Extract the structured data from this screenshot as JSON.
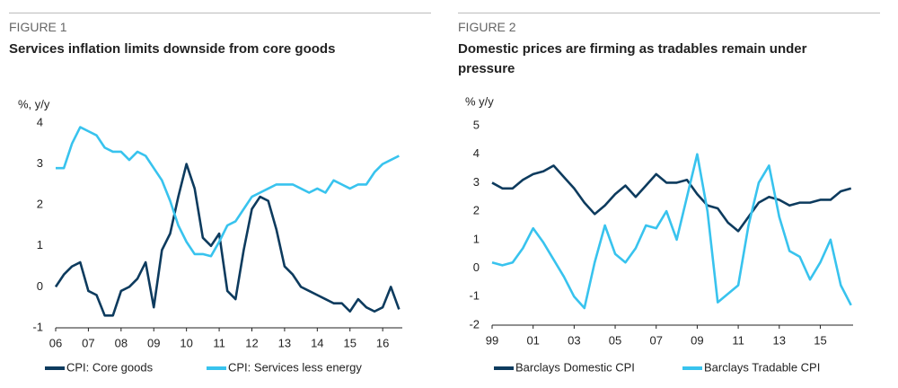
{
  "chart_data": [
    {
      "type": "line",
      "figure_label": "FIGURE 1",
      "title": "Services inflation limits downside from core goods",
      "y_label": "%, y/y",
      "x": [
        2006,
        2006.25,
        2006.5,
        2006.75,
        2007,
        2007.25,
        2007.5,
        2007.75,
        2008,
        2008.25,
        2008.5,
        2008.75,
        2009,
        2009.25,
        2009.5,
        2009.75,
        2010,
        2010.25,
        2010.5,
        2010.75,
        2011,
        2011.25,
        2011.5,
        2011.75,
        2012,
        2012.25,
        2012.5,
        2012.75,
        2013,
        2013.25,
        2013.5,
        2013.75,
        2014,
        2014.25,
        2014.5,
        2014.75,
        2015,
        2015.25,
        2015.5,
        2015.75,
        2016,
        2016.25,
        2016.5
      ],
      "series": [
        {
          "name": "CPI: Core goods",
          "color": "#0d3b5e",
          "values": [
            0,
            0.3,
            0.5,
            0.6,
            -0.1,
            -0.2,
            -0.7,
            -0.7,
            -0.1,
            0,
            0.2,
            0.6,
            -0.5,
            0.9,
            1.3,
            2.2,
            3.0,
            2.4,
            1.2,
            1.0,
            1.3,
            -0.1,
            -0.3,
            0.9,
            1.9,
            2.2,
            2.1,
            1.4,
            0.5,
            0.3,
            0,
            -0.1,
            -0.2,
            -0.3,
            -0.4,
            -0.4,
            -0.6,
            -0.3,
            -0.5,
            -0.6,
            -0.5,
            0,
            -0.55
          ]
        },
        {
          "name": "CPI: Services less energy",
          "color": "#38c3ee",
          "values": [
            2.9,
            2.9,
            3.5,
            3.9,
            3.8,
            3.7,
            3.4,
            3.3,
            3.3,
            3.1,
            3.3,
            3.2,
            2.9,
            2.6,
            2.1,
            1.5,
            1.1,
            0.8,
            0.8,
            0.75,
            1.1,
            1.5,
            1.6,
            1.9,
            2.2,
            2.3,
            2.4,
            2.5,
            2.5,
            2.5,
            2.4,
            2.3,
            2.4,
            2.3,
            2.6,
            2.5,
            2.4,
            2.5,
            2.5,
            2.8,
            3.0,
            3.1,
            3.2
          ]
        }
      ],
      "xlim": [
        2006,
        2016.6
      ],
      "xticks": [
        {
          "value": 2006,
          "label": "06"
        },
        {
          "value": 2007,
          "label": "07"
        },
        {
          "value": 2008,
          "label": "08"
        },
        {
          "value": 2009,
          "label": "09"
        },
        {
          "value": 2010,
          "label": "10"
        },
        {
          "value": 2011,
          "label": "11"
        },
        {
          "value": 2012,
          "label": "12"
        },
        {
          "value": 2013,
          "label": "13"
        },
        {
          "value": 2014,
          "label": "14"
        },
        {
          "value": 2015,
          "label": "15"
        },
        {
          "value": 2016,
          "label": "16"
        }
      ],
      "ylim": [
        -1,
        4
      ],
      "yticks": [
        -1,
        0,
        1,
        2,
        3,
        4
      ]
    },
    {
      "type": "line",
      "figure_label": "FIGURE 2",
      "title": "Domestic prices are firming as tradables remain under pressure",
      "y_label": "% y/y",
      "x": [
        1999,
        1999.5,
        2000,
        2000.5,
        2001,
        2001.5,
        2002,
        2002.5,
        2003,
        2003.5,
        2004,
        2004.5,
        2005,
        2005.5,
        2006,
        2006.5,
        2007,
        2007.5,
        2008,
        2008.5,
        2009,
        2009.5,
        2010,
        2010.5,
        2011,
        2011.5,
        2012,
        2012.5,
        2013,
        2013.5,
        2014,
        2014.5,
        2015,
        2015.5,
        2016,
        2016.5
      ],
      "series": [
        {
          "name": "Barclays Domestic CPI",
          "color": "#0d3b5e",
          "values": [
            3.0,
            2.8,
            2.8,
            3.1,
            3.3,
            3.4,
            3.6,
            3.2,
            2.8,
            2.3,
            1.9,
            2.2,
            2.6,
            2.9,
            2.5,
            2.9,
            3.3,
            3.0,
            3.0,
            3.1,
            2.6,
            2.2,
            2.1,
            1.6,
            1.3,
            1.8,
            2.3,
            2.5,
            2.4,
            2.2,
            2.3,
            2.3,
            2.4,
            2.4,
            2.7,
            2.8
          ]
        },
        {
          "name": "Barclays Tradable CPI",
          "color": "#38c3ee",
          "values": [
            0.2,
            0.1,
            0.2,
            0.7,
            1.4,
            0.9,
            0.3,
            -0.3,
            -1.0,
            -1.4,
            0.2,
            1.5,
            0.5,
            0.2,
            0.7,
            1.5,
            1.4,
            2.0,
            1.0,
            2.5,
            4.0,
            2.0,
            -1.2,
            -0.9,
            -0.6,
            1.5,
            3.0,
            3.6,
            1.8,
            0.6,
            0.4,
            -0.4,
            0.2,
            1.0,
            -0.6,
            -1.3
          ]
        }
      ],
      "xlim": [
        1999,
        2016.6
      ],
      "xticks": [
        {
          "value": 1999,
          "label": "99"
        },
        {
          "value": 2001,
          "label": "01"
        },
        {
          "value": 2003,
          "label": "03"
        },
        {
          "value": 2005,
          "label": "05"
        },
        {
          "value": 2007,
          "label": "07"
        },
        {
          "value": 2009,
          "label": "09"
        },
        {
          "value": 2011,
          "label": "11"
        },
        {
          "value": 2013,
          "label": "13"
        },
        {
          "value": 2015,
          "label": "15"
        }
      ],
      "ylim": [
        -2,
        5
      ],
      "yticks": [
        -2,
        -1,
        0,
        1,
        2,
        3,
        4,
        5
      ]
    }
  ]
}
